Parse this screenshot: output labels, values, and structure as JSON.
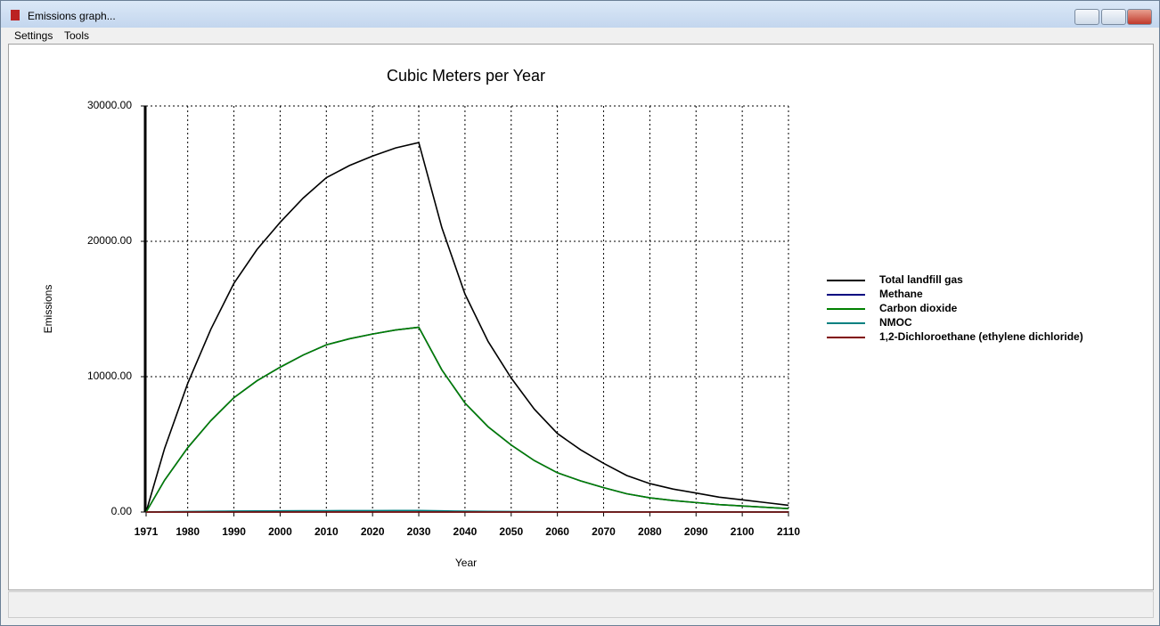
{
  "window": {
    "title": "Emissions graph...",
    "menu": [
      "Settings",
      "Tools"
    ]
  },
  "chart_data": {
    "type": "line",
    "title": "Cubic Meters per Year",
    "x_label": "Year",
    "y_label": "Emissions",
    "x": [
      1971,
      1975,
      1980,
      1985,
      1990,
      1995,
      2000,
      2005,
      2010,
      2015,
      2020,
      2025,
      2030,
      2035,
      2040,
      2045,
      2050,
      2055,
      2060,
      2065,
      2070,
      2075,
      2080,
      2085,
      2090,
      2095,
      2100,
      2105,
      2110
    ],
    "series": [
      {
        "name": "Total landfill gas",
        "color": "#000000",
        "values": [
          0,
          4700,
          9500,
          13500,
          16900,
          19400,
          21400,
          23200,
          24700,
          25600,
          26300,
          26900,
          27300,
          21000,
          16100,
          12600,
          9900,
          7600,
          5800,
          4600,
          3600,
          2700,
          2100,
          1700,
          1400,
          1100,
          900,
          700,
          500
        ]
      },
      {
        "name": "Methane",
        "color": "#000080",
        "values": [
          0,
          2350,
          4750,
          6750,
          8450,
          9700,
          10700,
          11600,
          12350,
          12800,
          13150,
          13450,
          13650,
          10500,
          8050,
          6300,
          4950,
          3800,
          2900,
          2300,
          1800,
          1350,
          1050,
          850,
          700,
          550,
          450,
          350,
          250
        ]
      },
      {
        "name": "Carbon dioxide",
        "color": "#008000",
        "values": [
          0,
          2350,
          4750,
          6750,
          8450,
          9700,
          10700,
          11600,
          12350,
          12800,
          13150,
          13450,
          13650,
          10500,
          8050,
          6300,
          4950,
          3800,
          2900,
          2300,
          1800,
          1350,
          1050,
          850,
          700,
          550,
          450,
          350,
          250
        ]
      },
      {
        "name": "NMOC",
        "color": "#008080",
        "values": [
          0,
          19,
          38,
          54,
          68,
          78,
          86,
          93,
          99,
          102,
          105,
          108,
          109,
          84,
          64,
          50,
          40,
          30,
          23,
          18,
          14,
          11,
          8,
          7,
          6,
          4,
          4,
          3,
          2
        ]
      },
      {
        "name": "1,2-Dichloroethane (ethylene dichloride)",
        "color": "#800000",
        "values": [
          0,
          0,
          0,
          0,
          0,
          0,
          0,
          0,
          0,
          0,
          0,
          0,
          0,
          0,
          0,
          0,
          0,
          0,
          0,
          0,
          0,
          0,
          0,
          0,
          0,
          0,
          0,
          0,
          0
        ]
      }
    ],
    "xlim": [
      1971,
      2110
    ],
    "xticks": [
      1971,
      1980,
      1990,
      2000,
      2010,
      2020,
      2030,
      2040,
      2050,
      2060,
      2070,
      2080,
      2090,
      2100,
      2110
    ],
    "ylim": [
      0,
      30000
    ],
    "yticks": [
      {
        "value": 0,
        "label": "0.00"
      },
      {
        "value": 10000,
        "label": "10000.00"
      },
      {
        "value": 20000,
        "label": "20000.00"
      },
      {
        "value": 30000,
        "label": "30000.00"
      }
    ],
    "grid": true,
    "legend": "right"
  }
}
